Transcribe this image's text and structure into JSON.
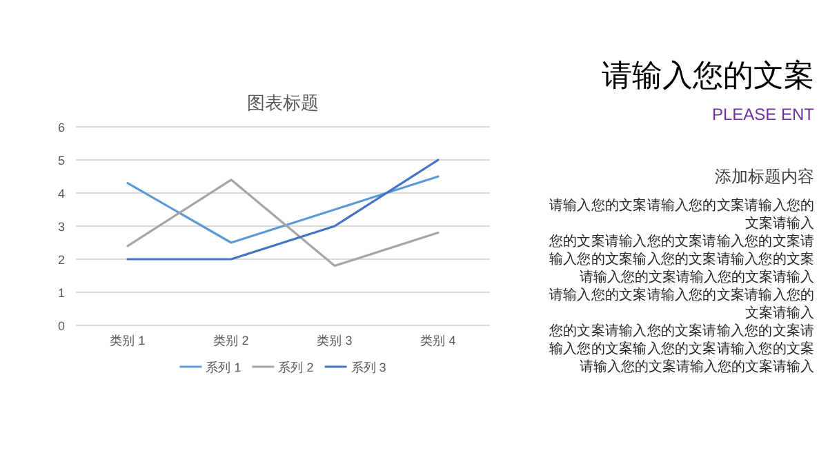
{
  "chart_data": [
    {
      "type": "line",
      "title": "图表标题",
      "categories": [
        "类别 1",
        "类别 2",
        "类别 3",
        "类别 4"
      ],
      "series": [
        {
          "name": "系列 1",
          "color": "#5b9bd5",
          "values": [
            4.3,
            2.5,
            3.5,
            4.5
          ]
        },
        {
          "name": "系列 2",
          "color": "#a5a5a5",
          "values": [
            2.4,
            4.4,
            1.8,
            2.8
          ]
        },
        {
          "name": "系列 3",
          "color": "#4472c4",
          "values": [
            2,
            2,
            3,
            5
          ]
        }
      ],
      "ylim": [
        0,
        6
      ],
      "yticks": [
        0,
        1,
        2,
        3,
        4,
        5,
        6
      ],
      "grid": "y",
      "legend": "bottom"
    },
    {
      "type": "other",
      "title": "请输入您的文案",
      "subtitle": "PLEASE ENT",
      "annotations": [
        "添加标题内容",
        "请输入您的文案请输入您的文案请输入您的文案请输入",
        "您的文案请输入您的文案请输入您的文案请输入您的文案输入您的文案请输入您的文案请输入您的文案请输入您的文案请输入",
        "请输入您的文案请输入您的文案请输入您的文案请输入",
        "您的文案请输入您的文案请输入您的文案请输入您的文案输入您的文案请输入您的文案请输入您的文案请输入您的文案请输入"
      ]
    }
  ]
}
